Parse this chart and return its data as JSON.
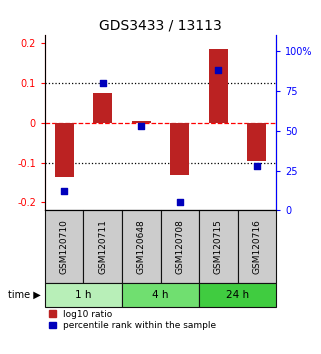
{
  "title": "GDS3433 / 13113",
  "samples": [
    "GSM120710",
    "GSM120711",
    "GSM120648",
    "GSM120708",
    "GSM120715",
    "GSM120716"
  ],
  "log10_ratio": [
    -0.135,
    0.075,
    0.005,
    -0.13,
    0.185,
    -0.095
  ],
  "percentile_rank": [
    12,
    80,
    53,
    5,
    88,
    28
  ],
  "groups": [
    {
      "label": "1 h",
      "indices": [
        0,
        1
      ],
      "color": "#b8efb8"
    },
    {
      "label": "4 h",
      "indices": [
        2,
        3
      ],
      "color": "#70df70"
    },
    {
      "label": "24 h",
      "indices": [
        4,
        5
      ],
      "color": "#40cc40"
    }
  ],
  "bar_color": "#bb2222",
  "dot_color": "#0000bb",
  "ylim_left": [
    -0.22,
    0.22
  ],
  "ylim_right": [
    0,
    110
  ],
  "yticks_left": [
    -0.2,
    -0.1,
    0.0,
    0.1,
    0.2
  ],
  "ytick_labels_left": [
    "-0.2",
    "-0.1",
    "0",
    "0.1",
    "0.2"
  ],
  "yticks_right": [
    0,
    25,
    50,
    75,
    100
  ],
  "ytick_labels_right": [
    "0",
    "25",
    "50",
    "75",
    "100%"
  ],
  "hlines": [
    -0.1,
    0.0,
    0.1
  ],
  "hline_styles": [
    "dotted",
    "dashed",
    "dotted"
  ],
  "hline_colors": [
    "black",
    "red",
    "black"
  ],
  "bar_width": 0.5,
  "dot_size": 22,
  "sample_box_color": "#cccccc",
  "sample_box_edge_color": "#111111",
  "time_label": "time",
  "legend_red_label": "log10 ratio",
  "legend_blue_label": "percentile rank within the sample",
  "title_fontsize": 10,
  "tick_fontsize": 7,
  "label_fontsize": 7,
  "sample_fontsize": 6.5
}
